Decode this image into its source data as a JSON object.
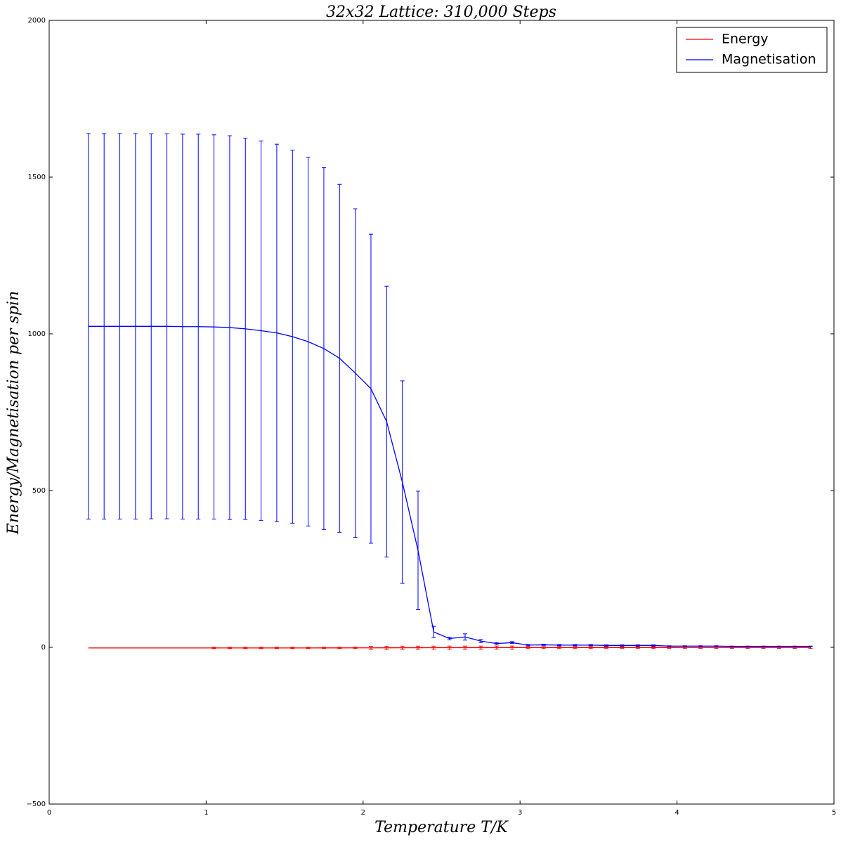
{
  "chart_data": {
    "type": "line",
    "title": "32x32 Lattice: 310,000 Steps",
    "x_label": "Temperature T/K",
    "y_label": "Energy/Magnetisation per spin",
    "x": [
      0.25,
      0.35,
      0.45,
      0.55,
      0.65,
      0.75,
      0.85,
      0.95,
      1.05,
      1.15,
      1.25,
      1.35,
      1.45,
      1.55,
      1.65,
      1.75,
      1.85,
      1.95,
      2.05,
      2.15,
      2.25,
      2.35,
      2.45,
      2.55,
      2.65,
      2.75,
      2.85,
      2.95,
      3.05,
      3.15,
      3.25,
      3.35,
      3.45,
      3.55,
      3.65,
      3.75,
      3.85,
      3.95,
      4.05,
      4.15,
      4.25,
      4.35,
      4.45,
      4.55,
      4.65,
      4.75,
      4.85
    ],
    "series": [
      {
        "name": "Energy",
        "color": "#ff0000",
        "values": [
          -2,
          -2,
          -2,
          -2,
          -2,
          -2,
          -2,
          -2,
          -1.99,
          -1.99,
          -1.98,
          -1.97,
          -1.95,
          -1.92,
          -1.89,
          -1.85,
          -1.8,
          -1.74,
          -1.66,
          -1.55,
          -1.42,
          -1.26,
          -1.15,
          -1.08,
          -1.02,
          -0.97,
          -0.93,
          -0.89,
          -0.86,
          -0.83,
          -0.8,
          -0.77,
          -0.75,
          -0.73,
          -0.71,
          -0.69,
          -0.67,
          -0.65,
          -0.63,
          -0.61,
          -0.6,
          -0.58,
          -0.57,
          -0.55,
          -0.54,
          -0.53,
          -0.52
        ],
        "errors": [
          0,
          0,
          0,
          0,
          0,
          0,
          0,
          0,
          2,
          2,
          2,
          2,
          2,
          2,
          2,
          2,
          2,
          2,
          5,
          5,
          5,
          5,
          5,
          5,
          5,
          5,
          5,
          5,
          3,
          3,
          3,
          3,
          3,
          3,
          3,
          3,
          3,
          3,
          3,
          3,
          3,
          3,
          3,
          3,
          3,
          3,
          3
        ]
      },
      {
        "name": "Magnetisation",
        "color": "#0000ff",
        "values": [
          1024,
          1024,
          1024,
          1024,
          1024,
          1024,
          1023,
          1023,
          1022,
          1020,
          1016,
          1010,
          1003,
          991,
          975,
          953,
          922,
          875,
          825,
          720,
          527,
          309,
          49,
          28,
          33,
          20,
          12,
          15,
          7,
          8,
          7,
          7,
          7,
          6,
          6,
          6,
          6,
          4,
          4,
          4,
          4,
          3,
          3,
          3,
          3,
          3,
          3
        ],
        "errors": [
          615,
          615,
          615,
          615,
          614,
          614,
          614,
          614,
          613,
          612,
          608,
          605,
          602,
          595,
          588,
          577,
          555,
          524,
          493,
          432,
          323,
          189,
          18,
          4,
          10,
          5,
          3,
          3,
          2,
          2,
          2,
          2,
          2,
          2,
          2,
          2,
          2,
          1,
          1,
          1,
          1,
          1,
          1,
          1,
          1,
          1,
          1
        ]
      }
    ],
    "xlim": [
      0,
      5
    ],
    "xticks": [
      0,
      1,
      2,
      3,
      4,
      5
    ],
    "ylim": [
      -500,
      2000
    ],
    "yticks": [
      {
        "value": -500,
        "label": "−500"
      },
      0,
      500,
      1000,
      1500,
      2000
    ],
    "legend": "upper right"
  }
}
